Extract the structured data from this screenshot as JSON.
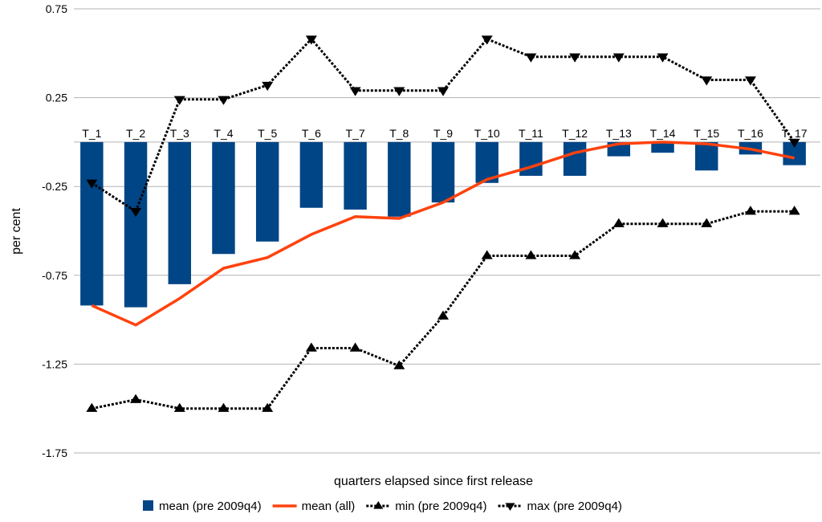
{
  "chart_data": {
    "type": "bar",
    "xlabel": "quarters elapsed since first release",
    "ylabel": "per cent",
    "ylim": [
      -1.75,
      0.75
    ],
    "yticks": [
      "0.75",
      "0.25",
      "-0.25",
      "-0.75",
      "-1.25",
      "-1.75"
    ],
    "ytick_values": [
      0.75,
      0.25,
      -0.25,
      -0.75,
      -1.25,
      -1.75
    ],
    "grid": "horizontal",
    "legend_position": "bottom",
    "categories": [
      "T_1",
      "T_2",
      "T_3",
      "T_4",
      "T_5",
      "T_6",
      "T_7",
      "T_8",
      "T_9",
      "T_10",
      "T_11",
      "T_12",
      "T_13",
      "T_14",
      "T_15",
      "T_16",
      "T_17"
    ],
    "series": [
      {
        "name": "mean (pre 2009q4)",
        "kind": "bar",
        "color": "#004586",
        "values": [
          -0.92,
          -0.93,
          -0.8,
          -0.63,
          -0.56,
          -0.37,
          -0.38,
          -0.42,
          -0.34,
          -0.23,
          -0.19,
          -0.19,
          -0.08,
          -0.06,
          -0.16,
          -0.07,
          -0.13
        ]
      },
      {
        "name": "mean (all)",
        "kind": "line",
        "color": "#ff420e",
        "values": [
          -0.92,
          -1.03,
          -0.88,
          -0.71,
          -0.65,
          -0.52,
          -0.42,
          -0.43,
          -0.34,
          -0.21,
          -0.14,
          -0.06,
          -0.01,
          0.0,
          -0.01,
          -0.04,
          -0.09
        ]
      },
      {
        "name": "min (pre 2009q4)",
        "kind": "line-dotted",
        "marker": "triangle-up",
        "color": "#000000",
        "values": [
          -1.5,
          -1.45,
          -1.5,
          -1.5,
          -1.5,
          -1.16,
          -1.16,
          -1.26,
          -0.98,
          -0.64,
          -0.64,
          -0.64,
          -0.46,
          -0.46,
          -0.46,
          -0.39,
          -0.39
        ]
      },
      {
        "name": "max (pre 2009q4)",
        "kind": "line-dotted",
        "marker": "triangle-down",
        "color": "#000000",
        "values": [
          -0.23,
          -0.39,
          0.24,
          0.24,
          0.32,
          0.58,
          0.29,
          0.29,
          0.29,
          0.58,
          0.48,
          0.48,
          0.48,
          0.48,
          0.35,
          0.35,
          0.0
        ]
      }
    ]
  }
}
